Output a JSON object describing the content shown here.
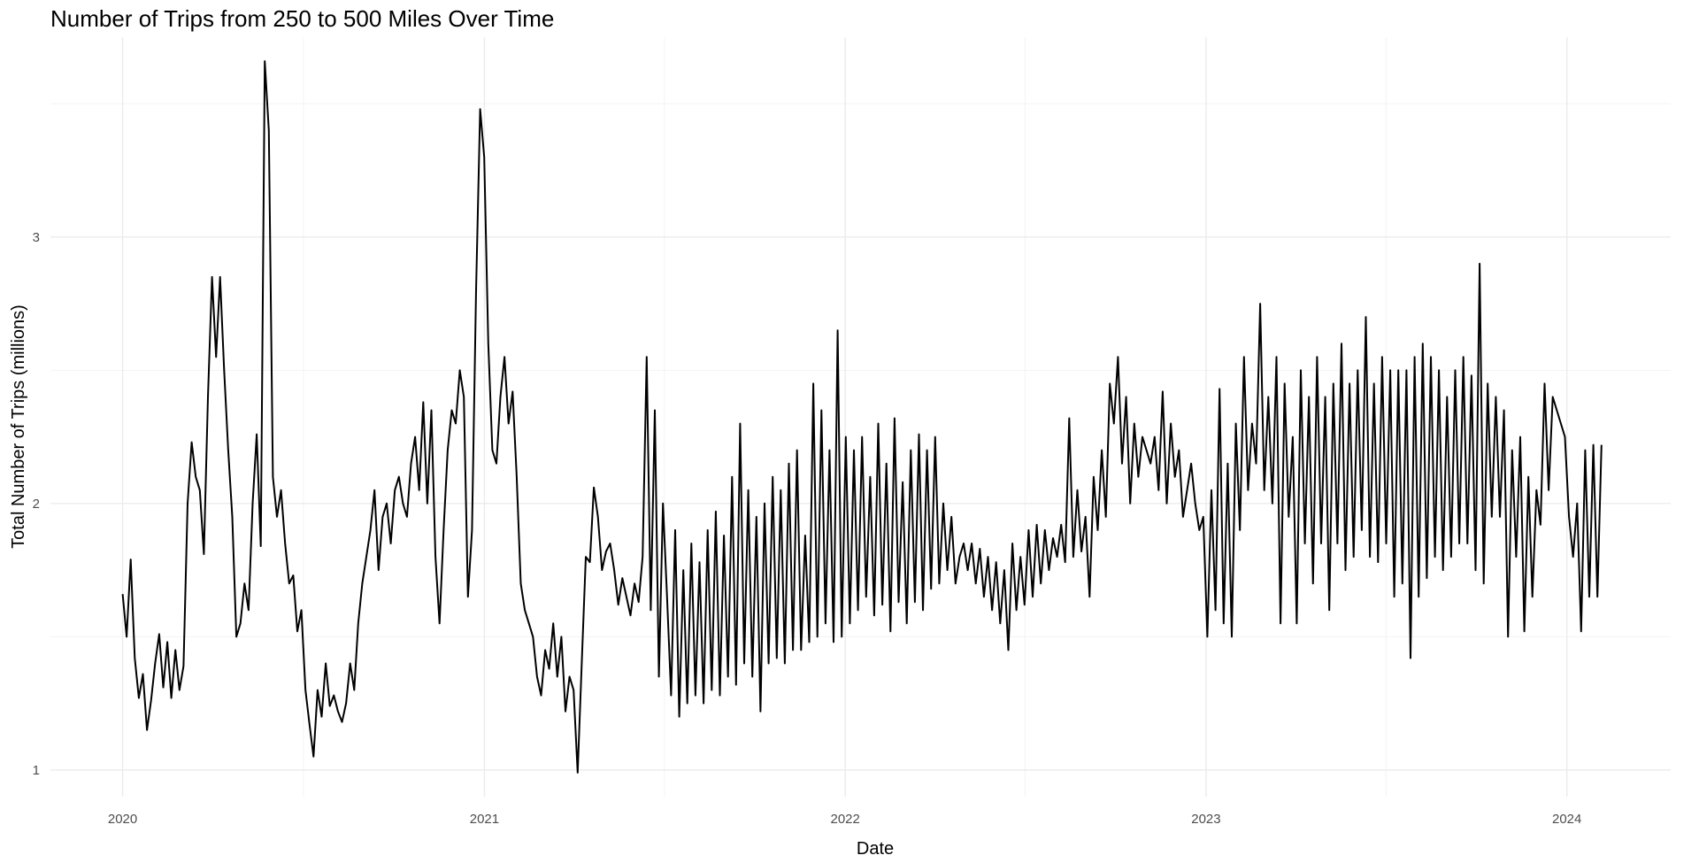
{
  "chart_data": {
    "type": "line",
    "title": "Number of Trips from 250 to 500 Miles Over Time",
    "xlabel": "Date",
    "ylabel": "Total Number of Trips (millions)",
    "x_ticks": [
      "2020",
      "2021",
      "2022",
      "2023",
      "2024"
    ],
    "y_ticks": [
      1,
      2,
      3
    ],
    "xlim": [
      "2019-10-20",
      "2024-04-15"
    ],
    "ylim": [
      0.9,
      3.75
    ],
    "grid": true,
    "legend": "none",
    "line_color": "#000000",
    "x_unit": "daily",
    "start_date": "2020-01-01",
    "series": [
      {
        "values": [
          1.66,
          1.5,
          1.79,
          1.42,
          1.27,
          1.36,
          1.15,
          1.26,
          1.4,
          1.51,
          1.31,
          1.48,
          1.27,
          1.45,
          1.3,
          1.39,
          2.0,
          2.23,
          2.1,
          2.05,
          1.81,
          2.4,
          2.85,
          2.55,
          2.85,
          2.5,
          2.2,
          1.95,
          1.5,
          1.55,
          1.7,
          1.6,
          2.0,
          2.26,
          1.84,
          3.66,
          3.4,
          2.1,
          1.95,
          2.05,
          1.85,
          1.7,
          1.73,
          1.52,
          1.6,
          1.3,
          1.17,
          1.05,
          1.3,
          1.2,
          1.4,
          1.24,
          1.28,
          1.22,
          1.18,
          1.25,
          1.4,
          1.3,
          1.55,
          1.7,
          1.8,
          1.9,
          2.05,
          1.75,
          1.95,
          2.0,
          1.85,
          2.05,
          2.1,
          2.0,
          1.95,
          2.15,
          2.25,
          2.05,
          2.38,
          2.0,
          2.35,
          1.8,
          1.55,
          1.9,
          2.2,
          2.35,
          2.3,
          2.5,
          2.4,
          1.65,
          1.9,
          2.8,
          3.48,
          3.3,
          2.6,
          2.2,
          2.15,
          2.4,
          2.55,
          2.3,
          2.42,
          2.1,
          1.7,
          1.6,
          1.55,
          1.5,
          1.35,
          1.28,
          1.45,
          1.38,
          1.55,
          1.35,
          1.5,
          1.22,
          1.35,
          1.3,
          0.99,
          1.4,
          1.8,
          1.78,
          2.06,
          1.95,
          1.75,
          1.82,
          1.85,
          1.75,
          1.62,
          1.72,
          1.65,
          1.58,
          1.7,
          1.63,
          1.8,
          2.55,
          1.6,
          2.35,
          1.35,
          2.0,
          1.65,
          1.28,
          1.9,
          1.2,
          1.75,
          1.25,
          1.85,
          1.28,
          1.78,
          1.25,
          1.9,
          1.3,
          1.97,
          1.28,
          1.88,
          1.35,
          2.1,
          1.32,
          2.3,
          1.4,
          2.05,
          1.35,
          1.95,
          1.22,
          2.0,
          1.4,
          2.1,
          1.42,
          2.05,
          1.4,
          2.15,
          1.45,
          2.2,
          1.45,
          1.88,
          1.48,
          2.45,
          1.5,
          2.35,
          1.55,
          2.2,
          1.48,
          2.65,
          1.5,
          2.25,
          1.55,
          2.2,
          1.6,
          2.25,
          1.65,
          2.1,
          1.58,
          2.3,
          1.62,
          2.15,
          1.52,
          2.32,
          1.63,
          2.08,
          1.55,
          2.2,
          1.63,
          2.26,
          1.6,
          2.2,
          1.68,
          2.25,
          1.7,
          2.0,
          1.75,
          1.95,
          1.7,
          1.8,
          1.85,
          1.75,
          1.85,
          1.7,
          1.83,
          1.65,
          1.8,
          1.6,
          1.78,
          1.55,
          1.75,
          1.45,
          1.85,
          1.6,
          1.8,
          1.62,
          1.9,
          1.65,
          1.92,
          1.7,
          1.9,
          1.75,
          1.87,
          1.8,
          1.92,
          1.78,
          2.32,
          1.8,
          2.05,
          1.82,
          1.95,
          1.65,
          2.1,
          1.9,
          2.2,
          1.95,
          2.45,
          2.3,
          2.55,
          2.15,
          2.4,
          2.0,
          2.3,
          2.1,
          2.25,
          2.2,
          2.15,
          2.25,
          2.05,
          2.42,
          2.0,
          2.3,
          2.1,
          2.2,
          1.95,
          2.05,
          2.15,
          2.0,
          1.9,
          1.95,
          1.5,
          2.05,
          1.6,
          2.43,
          1.55,
          2.15,
          1.5,
          2.3,
          1.9,
          2.55,
          2.05,
          2.3,
          2.15,
          2.75,
          2.05,
          2.4,
          2.0,
          2.55,
          1.55,
          2.45,
          1.95,
          2.25,
          1.55,
          2.5,
          1.85,
          2.4,
          1.7,
          2.55,
          1.85,
          2.4,
          1.6,
          2.45,
          1.85,
          2.6,
          1.75,
          2.45,
          1.8,
          2.5,
          1.9,
          2.7,
          1.8,
          2.45,
          1.78,
          2.55,
          1.85,
          2.5,
          1.65,
          2.5,
          1.7,
          2.5,
          1.42,
          2.55,
          1.65,
          2.6,
          1.72,
          2.55,
          1.8,
          2.5,
          1.75,
          2.4,
          1.8,
          2.5,
          1.85,
          2.55,
          1.85,
          2.48,
          1.75,
          2.9,
          1.7,
          2.45,
          1.95,
          2.4,
          1.95,
          2.35,
          1.5,
          2.2,
          1.8,
          2.25,
          1.52,
          2.1,
          1.65,
          2.05,
          1.92,
          2.45,
          2.05,
          2.4,
          2.35,
          2.3,
          2.25,
          1.95,
          1.8,
          2.0,
          1.52,
          2.2,
          1.65,
          2.22,
          1.65,
          2.22
        ]
      }
    ]
  }
}
